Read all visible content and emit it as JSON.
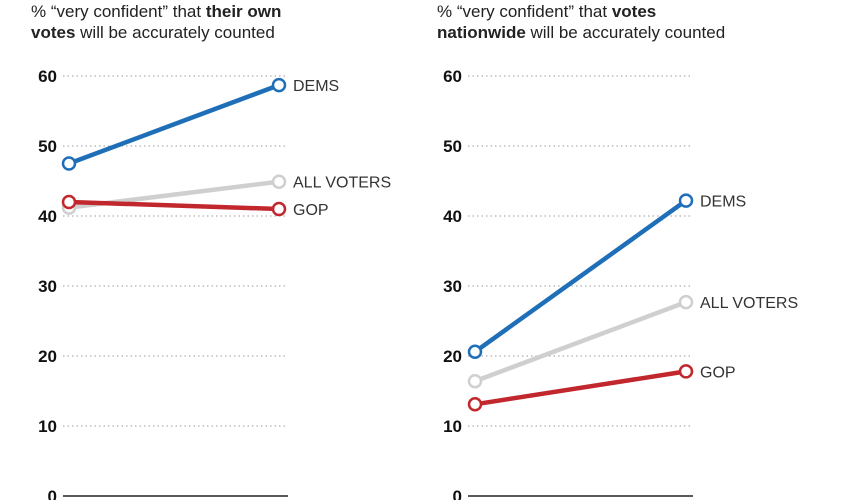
{
  "colors": {
    "dems": "#1f6fb8",
    "all": "#cfcfcf",
    "gop": "#c1272d",
    "grid": "#999999"
  },
  "chart_data": [
    {
      "type": "line",
      "title_pre": "% “very confident” that ",
      "title_bold1": "their own",
      "title_bold2": "votes",
      "title_post": " will be accurately counted",
      "ylim": [
        0,
        60
      ],
      "yticks": [
        "0",
        "10",
        "20",
        "30",
        "40",
        "50",
        "60"
      ],
      "series": [
        {
          "key": "dems",
          "name": "DEMS",
          "values": [
            47.5,
            58.7
          ]
        },
        {
          "key": "all",
          "name": "ALL VOTERS",
          "values": [
            41.2,
            44.9
          ]
        },
        {
          "key": "gop",
          "name": "GOP",
          "values": [
            42,
            41
          ]
        }
      ]
    },
    {
      "type": "line",
      "title_pre": "% “very confident” that ",
      "title_bold1": "votes",
      "title_bold2": "nationwide",
      "title_post": " will be accurately counted",
      "ylim": [
        0,
        60
      ],
      "yticks": [
        "0",
        "10",
        "20",
        "30",
        "40",
        "50",
        "60"
      ],
      "series": [
        {
          "key": "dems",
          "name": "DEMS",
          "values": [
            20.6,
            42.2
          ]
        },
        {
          "key": "all",
          "name": "ALL VOTERS",
          "values": [
            16.4,
            27.7
          ]
        },
        {
          "key": "gop",
          "name": "GOP",
          "values": [
            13.1,
            17.8
          ]
        }
      ]
    }
  ]
}
